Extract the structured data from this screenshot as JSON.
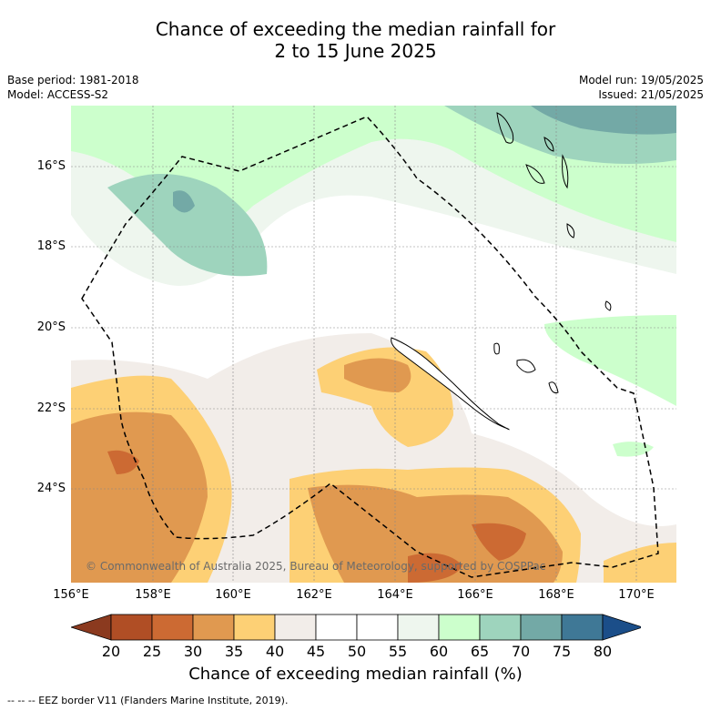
{
  "title_line1": "Chance of exceeding the median rainfall for",
  "title_line2": "2 to 15 June 2025",
  "base_period": "Base period: 1981-2018",
  "model": "Model: ACCESS-S2",
  "model_run": "Model run: 19/05/2025",
  "issued": "Issued: 21/05/2025",
  "lat_labels": [
    "16°S",
    "18°S",
    "20°S",
    "22°S",
    "24°S"
  ],
  "lon_labels": [
    "156°E",
    "158°E",
    "160°E",
    "162°E",
    "164°E",
    "166°E",
    "168°E",
    "170°E"
  ],
  "copyright": "© Commonwealth of Australia 2025, Bureau of Meteorology, supported by COSPPac",
  "colorbar": {
    "ticks": [
      "20",
      "25",
      "30",
      "35",
      "40",
      "45",
      "50",
      "55",
      "60",
      "65",
      "70",
      "75",
      "80"
    ],
    "colors": [
      "#8b3a1f",
      "#b04e25",
      "#cc6a33",
      "#e09950",
      "#fdd075",
      "#f2ede9",
      "#ffffff",
      "#ffffff",
      "#eef6ee",
      "#ccffcc",
      "#9ed4bd",
      "#73a9a6",
      "#3f7896",
      "#1b4e89"
    ],
    "label": "Chance of exceeding median rainfall (%)"
  },
  "footer": "--  --  -- EEZ border V11 (Flanders Marine Institute, 2019)."
}
